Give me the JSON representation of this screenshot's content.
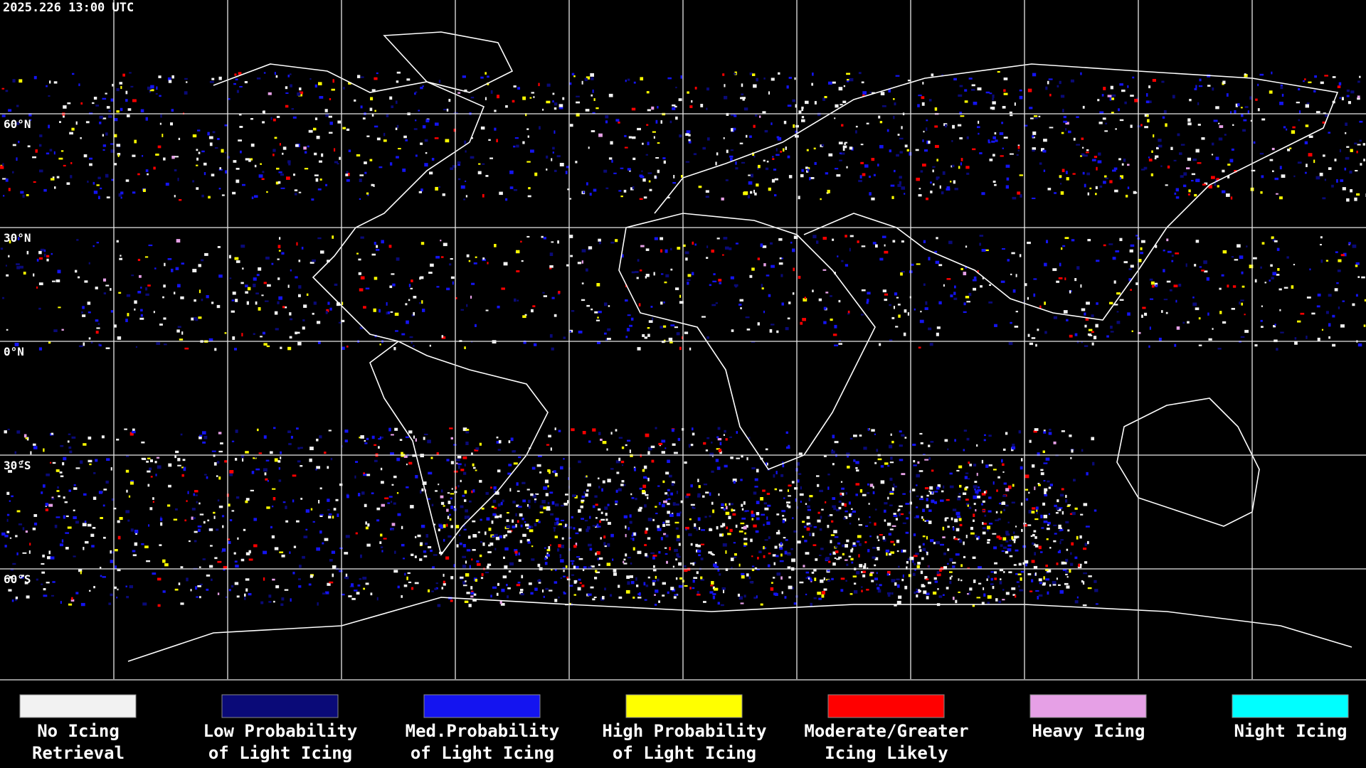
{
  "header": {
    "timestamp": "2025.226 13:00 UTC"
  },
  "map": {
    "latitude_labels": [
      "60°N",
      "30°N",
      "0°N",
      "30°S",
      "60°S"
    ]
  },
  "legend": {
    "items": [
      {
        "lines": [
          "No Icing",
          "Retrieval"
        ],
        "color": "#f2f2f2"
      },
      {
        "lines": [
          "Low Probability",
          "of Light Icing"
        ],
        "color": "#0a0a78"
      },
      {
        "lines": [
          "Med.Probability",
          "of Light Icing"
        ],
        "color": "#1414f0"
      },
      {
        "lines": [
          "High Probability",
          "of Light Icing"
        ],
        "color": "#ffff00"
      },
      {
        "lines": [
          "Moderate/Greater",
          "Icing Likely"
        ],
        "color": "#ff0000"
      },
      {
        "lines": [
          "Heavy Icing"
        ],
        "color": "#e6a0e6"
      },
      {
        "lines": [
          "Night Icing"
        ],
        "color": "#00ffff"
      }
    ]
  }
}
